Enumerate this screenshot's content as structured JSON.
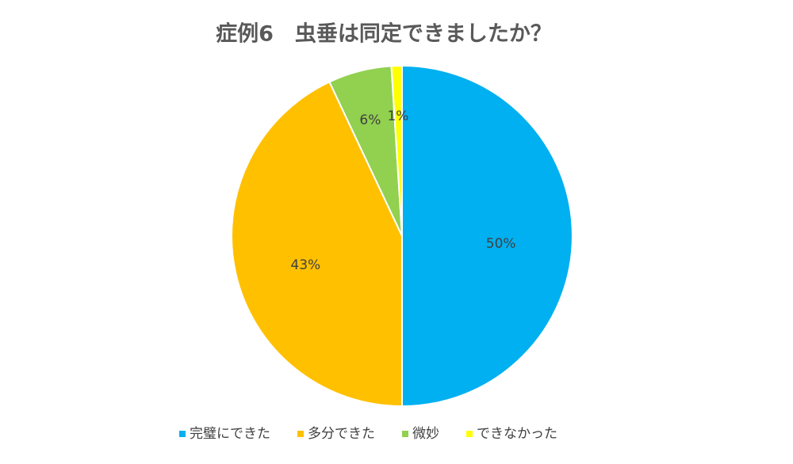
{
  "chart_data": {
    "type": "pie",
    "title": "症例6　虫垂は同定できましたか？",
    "categories": [
      "完璧にできた",
      "多分できた",
      "微妙",
      "できなかった"
    ],
    "values": [
      50,
      43,
      6,
      1
    ],
    "value_labels": [
      "50%",
      "43%",
      "6%",
      "1%"
    ],
    "colors": [
      "#00b0f0",
      "#ffc000",
      "#92d050",
      "#ffff00"
    ],
    "legend": "bottom"
  }
}
